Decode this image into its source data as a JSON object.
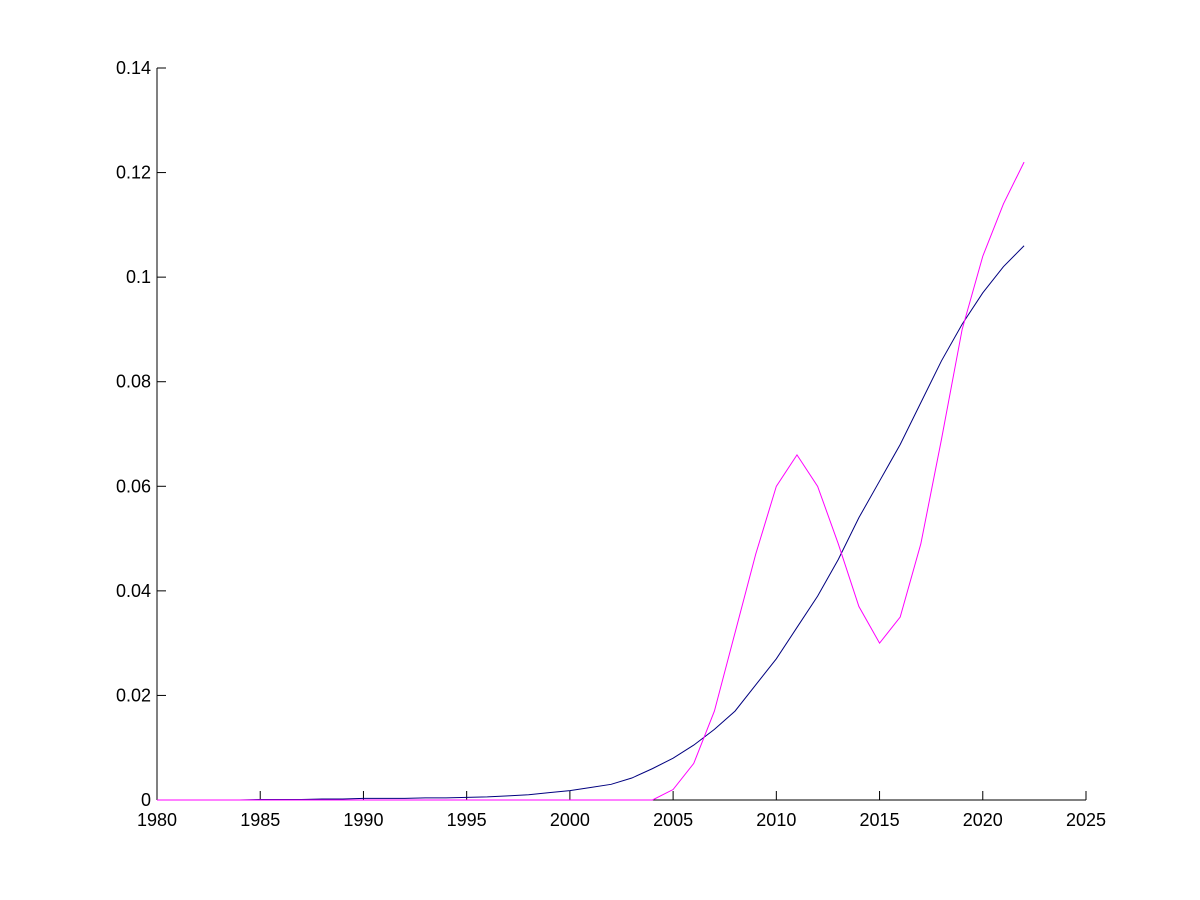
{
  "chart_data": {
    "type": "line",
    "x": [
      1980,
      1981,
      1982,
      1983,
      1984,
      1985,
      1986,
      1987,
      1988,
      1989,
      1990,
      1991,
      1992,
      1993,
      1994,
      1995,
      1996,
      1997,
      1998,
      1999,
      2000,
      2001,
      2002,
      2003,
      2004,
      2005,
      2006,
      2007,
      2008,
      2009,
      2010,
      2011,
      2012,
      2013,
      2014,
      2015,
      2016,
      2017,
      2018,
      2019,
      2020,
      2021,
      2022
    ],
    "series": [
      {
        "color": "#00007f",
        "values": [
          0,
          0,
          0,
          0,
          0,
          0.0001,
          0.0001,
          0.0001,
          0.0002,
          0.0002,
          0.0003,
          0.0003,
          0.0003,
          0.0004,
          0.0004,
          0.0005,
          0.0006,
          0.0008,
          0.001,
          0.0014,
          0.0018,
          0.0024,
          0.003,
          0.0042,
          0.006,
          0.008,
          0.0105,
          0.0135,
          0.017,
          0.022,
          0.027,
          0.033,
          0.039,
          0.046,
          0.054,
          0.061,
          0.068,
          0.076,
          0.084,
          0.091,
          0.097,
          0.102,
          0.106
        ]
      },
      {
        "color": "#ff00ff",
        "values": [
          0,
          0,
          0,
          0,
          0,
          0,
          0,
          0,
          0,
          0,
          0,
          0,
          0,
          0,
          0,
          0,
          0,
          0,
          0,
          0,
          0,
          0,
          0,
          0,
          0,
          0.002,
          0.007,
          0.017,
          0.032,
          0.047,
          0.06,
          0.066,
          0.06,
          0.049,
          0.037,
          0.03,
          0.035,
          0.049,
          0.069,
          0.09,
          0.104,
          0.114,
          0.122
        ]
      }
    ],
    "xlim": [
      1980,
      2025
    ],
    "xticks": [
      1980,
      1985,
      1990,
      1995,
      2000,
      2005,
      2010,
      2015,
      2020,
      2025
    ],
    "ylim": [
      0,
      0.14
    ],
    "yticks": [
      0,
      0.02,
      0.04,
      0.06,
      0.08,
      0.1,
      0.12,
      0.14
    ]
  }
}
